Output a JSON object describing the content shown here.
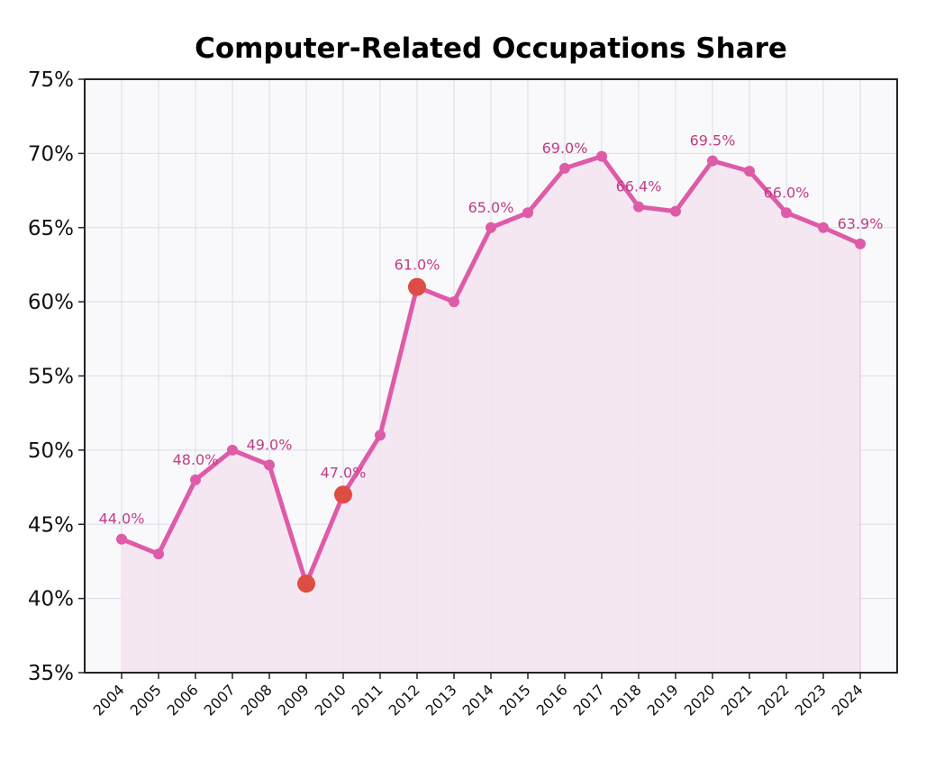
{
  "chart_data": {
    "type": "line",
    "title": "Computer-Related Occupations Share",
    "xlabel": "",
    "ylabel": "",
    "x": [
      "2004",
      "2005",
      "2006",
      "2007",
      "2008",
      "2009",
      "2010",
      "2011",
      "2012",
      "2013",
      "2014",
      "2015",
      "2016",
      "2017",
      "2018",
      "2019",
      "2020",
      "2021",
      "2022",
      "2023",
      "2024"
    ],
    "series": [
      {
        "values": [
          44.0,
          43.0,
          48.0,
          50.0,
          49.0,
          41.0,
          47.0,
          51.0,
          61.0,
          60.0,
          65.0,
          66.0,
          69.0,
          69.8,
          66.4,
          66.1,
          69.5,
          68.8,
          66.0,
          65.0,
          63.9
        ]
      }
    ],
    "ylim": [
      35,
      75
    ],
    "yticks": [
      35,
      40,
      45,
      50,
      55,
      60,
      65,
      70,
      75
    ],
    "ytick_labels": [
      "35%",
      "40%",
      "45%",
      "50%",
      "55%",
      "60%",
      "65%",
      "70%",
      "75%"
    ],
    "highlighted_points": [
      "2009",
      "2010",
      "2012"
    ],
    "data_labels": [
      {
        "x": "2004",
        "text": "44.0%"
      },
      {
        "x": "2006",
        "text": "48.0%"
      },
      {
        "x": "2008",
        "text": "49.0%"
      },
      {
        "x": "2010",
        "text": "47.0%"
      },
      {
        "x": "2012",
        "text": "61.0%"
      },
      {
        "x": "2014",
        "text": "65.0%"
      },
      {
        "x": "2016",
        "text": "69.0%"
      },
      {
        "x": "2018",
        "text": "66.4%"
      },
      {
        "x": "2020",
        "text": "69.5%"
      },
      {
        "x": "2022",
        "text": "66.0%"
      },
      {
        "x": "2024",
        "text": "63.9%"
      }
    ],
    "grid": true,
    "legend": "none",
    "colors": {
      "line": "#de5ba8",
      "fill": "#f5e4f0",
      "highlight": "#dd4d44",
      "label": "#c03c86",
      "plot_background": "#f9f9fb",
      "grid": "#dcdcec"
    }
  }
}
